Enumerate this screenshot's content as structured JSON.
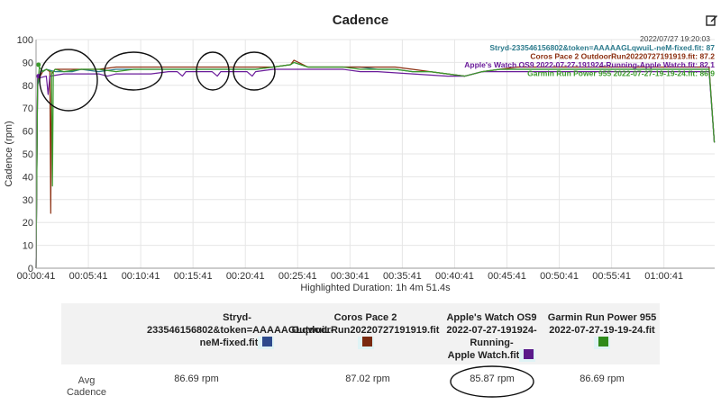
{
  "title": "Cadence",
  "timestamp": "2022/07/27 19:20:03",
  "legend": [
    {
      "text": "Stryd-233546156802&token=AAAAAGLqwuiL-neM-fixed.fit: 87",
      "color": "#2b7a8c"
    },
    {
      "text": "Coros Pace 2 OutdoorRun20220727191919.fit: 87.2",
      "color": "#8b2e0f"
    },
    {
      "text": "Apple's Watch OS9 2022-07-27-191924-Running-Apple Watch.fit: 82.1",
      "color": "#6a1b9a"
    },
    {
      "text": "Garmin Run Power 955 2022-07-27-19-19-24.fit: 86.9",
      "color": "#3a9a2a"
    }
  ],
  "chart_data": {
    "type": "line",
    "title": "Cadence",
    "ylabel": "Cadence (rpm)",
    "xlabel": "Highlighted Duration: 1h 4m 51.4s",
    "ylim": [
      0,
      100
    ],
    "yticks": [
      0,
      10,
      20,
      30,
      40,
      50,
      60,
      70,
      80,
      90,
      100
    ],
    "xlim_sec": [
      41,
      3932
    ],
    "xticks": [
      {
        "sec": 41,
        "label": "00:00:41"
      },
      {
        "sec": 341,
        "label": "00:05:41"
      },
      {
        "sec": 641,
        "label": "00:10:41"
      },
      {
        "sec": 941,
        "label": "00:15:41"
      },
      {
        "sec": 1241,
        "label": "00:20:41"
      },
      {
        "sec": 1541,
        "label": "00:25:41"
      },
      {
        "sec": 1841,
        "label": "00:30:41"
      },
      {
        "sec": 2141,
        "label": "00:35:41"
      },
      {
        "sec": 2441,
        "label": "00:40:41"
      },
      {
        "sec": 2741,
        "label": "00:45:41"
      },
      {
        "sec": 3041,
        "label": "00:50:41"
      },
      {
        "sec": 3341,
        "label": "00:55:41"
      },
      {
        "sec": 3641,
        "label": "01:00:41"
      }
    ],
    "grid": true,
    "series": [
      {
        "name": "Stryd-233546156802&token=AAAAAGLqwuiL-neM-fixed.fit",
        "color": "#2b7a8c",
        "x": [
          41,
          50,
          70,
          100,
          150,
          200,
          250,
          300,
          400,
          500,
          600,
          700,
          800,
          900,
          1000,
          1100,
          1200,
          1300,
          1400,
          1500,
          1520,
          1600,
          1700,
          1800,
          1900,
          2000,
          2100,
          2200,
          2300,
          2400,
          2500,
          2600,
          2700,
          2800,
          2900,
          3000,
          3200,
          3400,
          3600,
          3800,
          3900,
          3930
        ],
        "y": [
          0,
          80,
          86,
          87,
          86,
          86,
          86,
          87,
          86,
          87,
          87,
          87,
          87,
          87,
          87,
          87,
          87,
          87,
          88,
          89,
          90,
          88,
          88,
          88,
          88,
          87,
          87,
          86,
          86,
          85,
          84,
          86,
          87,
          87,
          87,
          87,
          87,
          87,
          87,
          87,
          87,
          55
        ]
      },
      {
        "name": "Coros Pace 2 OutdoorRun20220727191919.fit",
        "color": "#8b2e0f",
        "x": [
          41,
          50,
          80,
          100,
          120,
          125,
          130,
          150,
          200,
          300,
          400,
          500,
          600,
          700,
          800,
          900,
          1000,
          1100,
          1200,
          1300,
          1400,
          1500,
          1520,
          1600,
          1700,
          1800,
          1900,
          2000,
          2100,
          2200,
          2300,
          2400,
          2500,
          2600,
          2700,
          2800,
          2900,
          3000,
          3200,
          3400,
          3600,
          3800,
          3900,
          3930
        ],
        "y": [
          0,
          82,
          86,
          87,
          86,
          24,
          85,
          87,
          87,
          87,
          87,
          88,
          88,
          88,
          88,
          88,
          88,
          88,
          88,
          88,
          88,
          89,
          91,
          88,
          88,
          88,
          88,
          88,
          88,
          87,
          86,
          85,
          84,
          86,
          87,
          88,
          88,
          88,
          88,
          88,
          88,
          88,
          88,
          55
        ]
      },
      {
        "name": "Apple's Watch OS9 2022-07-27-191924-Running-Apple Watch.fit",
        "color": "#6a1b9a",
        "x": [
          41,
          50,
          100,
          110,
          120,
          200,
          300,
          400,
          450,
          500,
          600,
          700,
          800,
          850,
          880,
          900,
          1000,
          1050,
          1080,
          1100,
          1200,
          1250,
          1280,
          1300,
          1400,
          1500,
          1600,
          1700,
          1800,
          1900,
          2000,
          2200,
          2400,
          2500,
          2600,
          2700,
          2800,
          3000,
          3200,
          3400,
          3600,
          3800,
          3900,
          3930
        ],
        "y": [
          0,
          83,
          84,
          76,
          84,
          85,
          85,
          85,
          84,
          85,
          85,
          85,
          86,
          86,
          84,
          86,
          86,
          86,
          84,
          86,
          86,
          86,
          84,
          86,
          87,
          87,
          87,
          87,
          87,
          86,
          86,
          85,
          84,
          84,
          86,
          86,
          86,
          86,
          86,
          86,
          86,
          86,
          86,
          55
        ]
      },
      {
        "name": "Garmin Run Power 955 2022-07-27-19-19-24.fit",
        "color": "#3a9a2a",
        "x": [
          41,
          50,
          60,
          80,
          100,
          130,
          135,
          140,
          150,
          200,
          300,
          400,
          500,
          600,
          700,
          800,
          900,
          1000,
          1100,
          1200,
          1300,
          1400,
          1500,
          1520,
          1600,
          1700,
          1800,
          1900,
          2000,
          2100,
          2200,
          2300,
          2400,
          2500,
          2600,
          2700,
          2800,
          2900,
          3000,
          3200,
          3400,
          3600,
          3800,
          3900,
          3930
        ],
        "y": [
          0,
          80,
          88,
          86,
          87,
          86,
          36,
          86,
          87,
          86,
          87,
          87,
          86,
          87,
          87,
          87,
          87,
          87,
          87,
          87,
          87,
          88,
          89,
          90,
          88,
          88,
          88,
          87,
          87,
          87,
          86,
          86,
          85,
          84,
          86,
          87,
          87,
          87,
          87,
          87,
          87,
          87,
          87,
          87,
          55
        ]
      }
    ]
  },
  "stats": {
    "headers": [
      {
        "lines": [
          "Stryd-",
          "233546156802&token=AAAAAGLqwuiL-",
          "neM-fixed.fit"
        ],
        "color": "#2e4a8c"
      },
      {
        "lines": [
          "Coros Pace 2",
          "OutdoorRun20220727191919.fit"
        ],
        "color": "#7a2a10"
      },
      {
        "lines": [
          "Apple's Watch OS9",
          "2022-07-27-191924-",
          "Running-",
          "Apple Watch.fit"
        ],
        "color": "#5a1a8a"
      },
      {
        "lines": [
          "Garmin Run Power 955",
          "2022-07-27-19-19-24.fit"
        ],
        "color": "#2e8a1a"
      }
    ],
    "row_label": "Avg Cadence",
    "values": [
      "86.69 rpm",
      "87.02 rpm",
      "85.87 rpm",
      "86.69 rpm"
    ]
  }
}
